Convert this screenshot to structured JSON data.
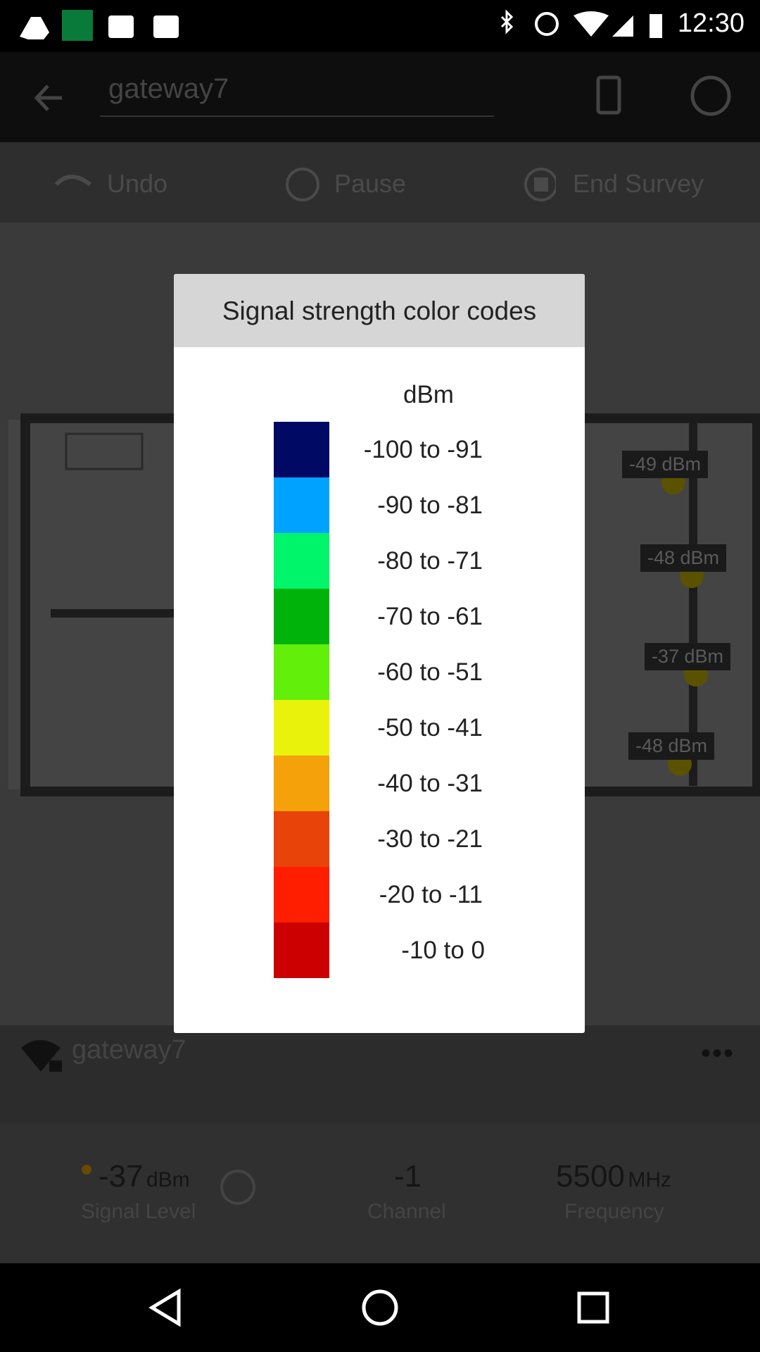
{
  "status_bar": {
    "time": "12:30"
  },
  "app_bar": {
    "network": "gateway7"
  },
  "toolbar": {
    "undo": "Undo",
    "pause": "Pause",
    "end_survey": "End Survey"
  },
  "map": {
    "tags": [
      "-49 dBm",
      "-48 dBm",
      "-37 dBm",
      "-48 dBm"
    ]
  },
  "dialog": {
    "title": "Signal strength color codes",
    "unit": "dBm",
    "rows": [
      {
        "label": "-100 to -91",
        "color": "#000a64"
      },
      {
        "label": "-90 to -81",
        "color": "#00a2ff"
      },
      {
        "label": "-80 to -71",
        "color": "#00f56a"
      },
      {
        "label": "-70 to -61",
        "color": "#00b30a"
      },
      {
        "label": "-60 to -51",
        "color": "#62f00a"
      },
      {
        "label": "-50 to -41",
        "color": "#e8f20a"
      },
      {
        "label": "-40 to -31",
        "color": "#f4a10a"
      },
      {
        "label": "-30 to -21",
        "color": "#e8440a"
      },
      {
        "label": "-20 to -11",
        "color": "#ff1e00"
      },
      {
        "label": "-10 to 0",
        "color": "#cc0000"
      }
    ]
  },
  "network_panel": {
    "name": "gateway7"
  },
  "stats": [
    {
      "value": "-37",
      "unit": "dBm",
      "label": "Signal Level"
    },
    {
      "value": "-1",
      "label": "Channel"
    },
    {
      "value": "5500",
      "unit": "MHz",
      "label": "Frequency"
    }
  ]
}
